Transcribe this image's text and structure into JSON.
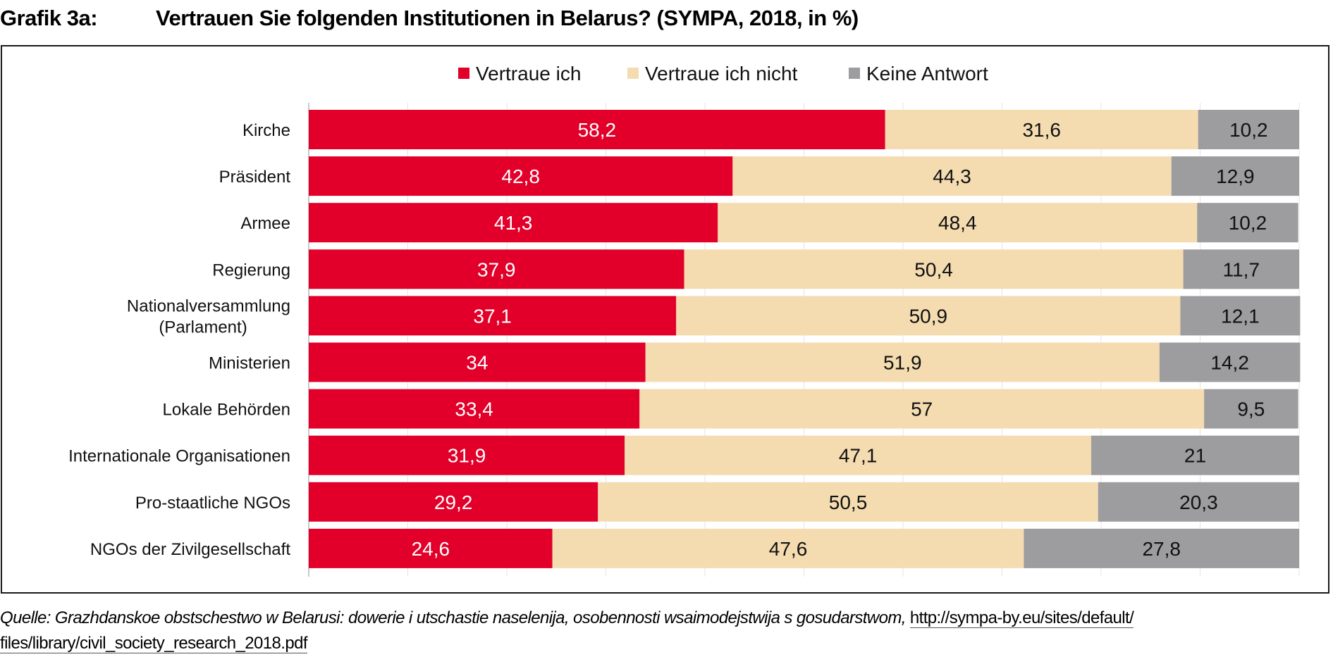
{
  "header": {
    "figure_label": "Grafik 3a:",
    "title": "Vertrauen Sie folgenden Institutionen in Belarus? (SYMPA, 2018, in %)"
  },
  "source": {
    "text": "Quelle: Grazhdanskoe obstschestwo w Belarusi: dowerie i utschastie naselenija, osobennosti wsaimodejstwija s gosudarstwom, ",
    "link_line1": "http://sympa-by.eu/sites/default/",
    "link_line2": "files/library/civil_society_research_2018.pdf"
  },
  "chart_data": {
    "type": "bar",
    "orientation": "horizontal",
    "stacked": true,
    "title": "Vertrauen Sie folgenden Institutionen in Belarus? (SYMPA, 2018, in %)",
    "xlabel": "",
    "ylabel": "",
    "xlim": [
      0,
      100
    ],
    "grid": true,
    "legend_position": "top-center",
    "categories": [
      [
        "Kirche"
      ],
      [
        "Präsident"
      ],
      [
        "Armee"
      ],
      [
        "Regierung"
      ],
      [
        "Nationalversammlung",
        "(Parlament)"
      ],
      [
        "Ministerien"
      ],
      [
        "Lokale Behörden"
      ],
      [
        "Internationale Organisationen"
      ],
      [
        "Pro-staatliche NGOs"
      ],
      [
        "NGOs der Zivilgesellschaft"
      ]
    ],
    "series": [
      {
        "name": "Vertraue ich",
        "color": "#e2002a",
        "label_color": "#ffffff",
        "values": [
          58.2,
          42.8,
          41.3,
          37.9,
          37.1,
          34,
          33.4,
          31.9,
          29.2,
          24.6
        ],
        "labels": [
          "58,2",
          "42,8",
          "41,3",
          "37,9",
          "37,1",
          "34",
          "33,4",
          "31,9",
          "29,2",
          "24,6"
        ]
      },
      {
        "name": "Vertraue ich nicht",
        "color": "#f4dcb0",
        "label_color": "#111111",
        "values": [
          31.6,
          44.3,
          48.4,
          50.4,
          50.9,
          51.9,
          57,
          47.1,
          50.5,
          47.6
        ],
        "labels": [
          "31,6",
          "44,3",
          "48,4",
          "50,4",
          "50,9",
          "51,9",
          "57",
          "47,1",
          "50,5",
          "47,6"
        ]
      },
      {
        "name": "Keine Antwort",
        "color": "#9d9c9e",
        "label_color": "#111111",
        "values": [
          10.2,
          12.9,
          10.2,
          11.7,
          12.1,
          14.2,
          9.5,
          21,
          20.3,
          27.8
        ],
        "labels": [
          "10,2",
          "12,9",
          "10,2",
          "11,7",
          "12,1",
          "14,2",
          "9,5",
          "21",
          "20,3",
          "27,8"
        ]
      }
    ]
  }
}
